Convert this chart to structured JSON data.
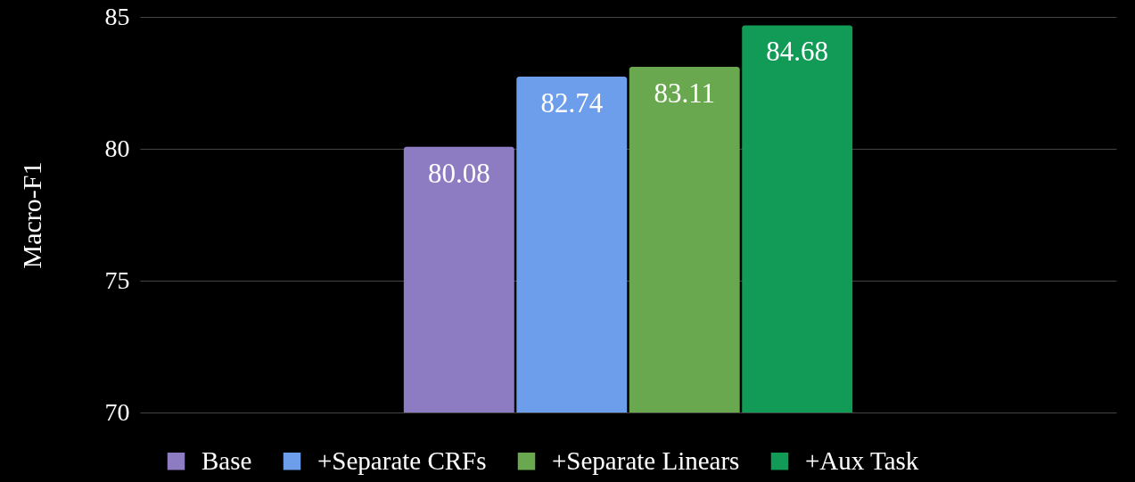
{
  "chart_data": {
    "type": "bar",
    "ylabel": "Macro-F1",
    "categories": [
      null
    ],
    "series": [
      {
        "name": "Base",
        "color": "#8e7cc3",
        "values": [
          80.08
        ]
      },
      {
        "name": "+Separate CRFs",
        "color": "#6d9eeb",
        "values": [
          82.74
        ]
      },
      {
        "name": "+Separate Linears",
        "color": "#6aa84f",
        "values": [
          83.11
        ]
      },
      {
        "name": "+Aux Task",
        "color": "#119b56",
        "values": [
          84.68
        ]
      }
    ],
    "ylim": [
      70,
      85
    ],
    "yticks": [
      70,
      75,
      80,
      85
    ],
    "grid": "y",
    "legend": "bottom",
    "data_labels": true
  }
}
